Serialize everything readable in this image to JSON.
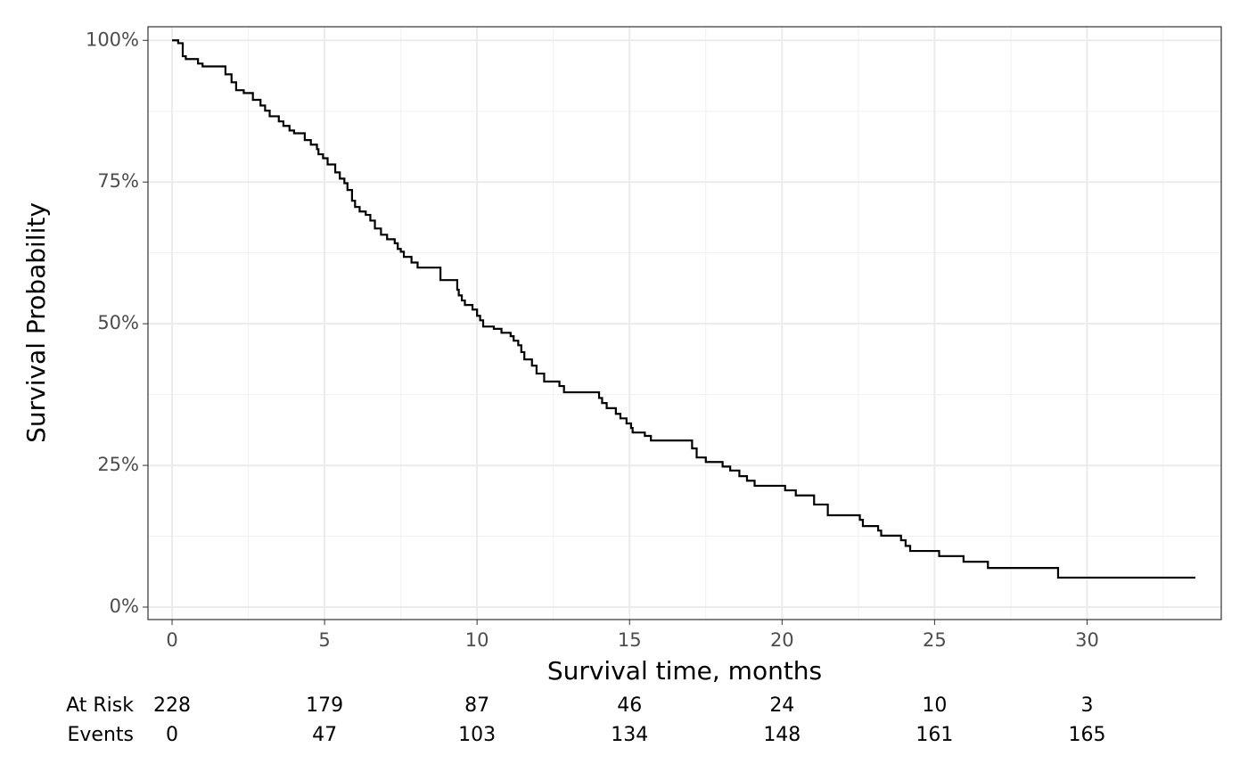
{
  "chart_data": {
    "type": "step",
    "x_label": "Survival time, months",
    "y_label": "Survival Probability",
    "xlim": [
      -0.79,
      34.4
    ],
    "ylim": [
      -2.2,
      102.4
    ],
    "xticks": [
      0,
      5,
      10,
      15,
      20,
      25,
      30
    ],
    "yticks": [
      {
        "value": 0,
        "label": "0%"
      },
      {
        "value": 25,
        "label": "25%"
      },
      {
        "value": 50,
        "label": "50%"
      },
      {
        "value": 75,
        "label": "75%"
      },
      {
        "value": 100,
        "label": "100%"
      }
    ],
    "grid": true,
    "series": [
      {
        "name": "Survival",
        "color": "#000000",
        "x": [
          0,
          0.2,
          0.35,
          0.45,
          0.85,
          1.0,
          1.75,
          1.95,
          2.1,
          2.35,
          2.65,
          2.9,
          3.05,
          3.2,
          3.5,
          3.65,
          3.85,
          4.0,
          4.35,
          4.55,
          4.75,
          4.8,
          4.95,
          5.1,
          5.35,
          5.5,
          5.65,
          5.75,
          5.9,
          6.0,
          6.15,
          6.35,
          6.5,
          6.65,
          6.85,
          7.05,
          7.3,
          7.4,
          7.5,
          7.6,
          7.85,
          8.05,
          8.8,
          9.35,
          9.4,
          9.5,
          9.6,
          9.85,
          10.0,
          10.1,
          10.2,
          10.55,
          10.8,
          11.1,
          11.2,
          11.35,
          11.45,
          11.55,
          11.8,
          11.95,
          12.2,
          12.7,
          12.85,
          14.0,
          14.1,
          14.25,
          14.55,
          14.7,
          14.9,
          15.05,
          15.1,
          15.5,
          15.7,
          17.05,
          17.2,
          17.5,
          18.05,
          18.3,
          18.6,
          18.85,
          19.1,
          20.1,
          20.45,
          21.05,
          21.5,
          22.55,
          22.65,
          23.15,
          23.25,
          23.9,
          24.05,
          24.2,
          25.15,
          25.95,
          26.75,
          29.05,
          33.55
        ],
        "values": [
          100,
          99.5,
          97.2,
          96.7,
          95.9,
          95.4,
          94.0,
          92.6,
          91.2,
          90.7,
          89.5,
          88.5,
          87.6,
          86.6,
          85.7,
          84.9,
          84.1,
          83.6,
          82.4,
          81.6,
          80.8,
          79.9,
          79.2,
          78.1,
          76.7,
          75.6,
          74.8,
          73.6,
          71.7,
          70.6,
          69.8,
          69.2,
          68.2,
          66.8,
          65.7,
          64.9,
          64.2,
          63.2,
          62.7,
          61.8,
          60.8,
          59.9,
          57.7,
          56.0,
          55.0,
          54.1,
          53.3,
          52.5,
          51.4,
          50.6,
          49.5,
          49.1,
          48.4,
          47.8,
          47.0,
          46.2,
          45.0,
          43.7,
          42.6,
          41.2,
          39.8,
          39.0,
          37.9,
          36.9,
          36.0,
          35.1,
          34.1,
          33.3,
          32.4,
          31.6,
          30.8,
          30.2,
          29.4,
          28.0,
          26.4,
          25.6,
          24.8,
          24.1,
          23.1,
          22.3,
          21.4,
          20.6,
          19.7,
          18.1,
          16.2,
          15.4,
          14.3,
          13.5,
          12.6,
          11.8,
          10.8,
          9.9,
          9.0,
          8.0,
          6.9,
          5.2,
          5.2
        ]
      }
    ],
    "risk_table": [
      {
        "name": "At Risk",
        "values": [
          228,
          179,
          87,
          46,
          24,
          10,
          3
        ]
      },
      {
        "name": "Events",
        "values": [
          0,
          47,
          103,
          134,
          148,
          161,
          165
        ]
      }
    ]
  }
}
